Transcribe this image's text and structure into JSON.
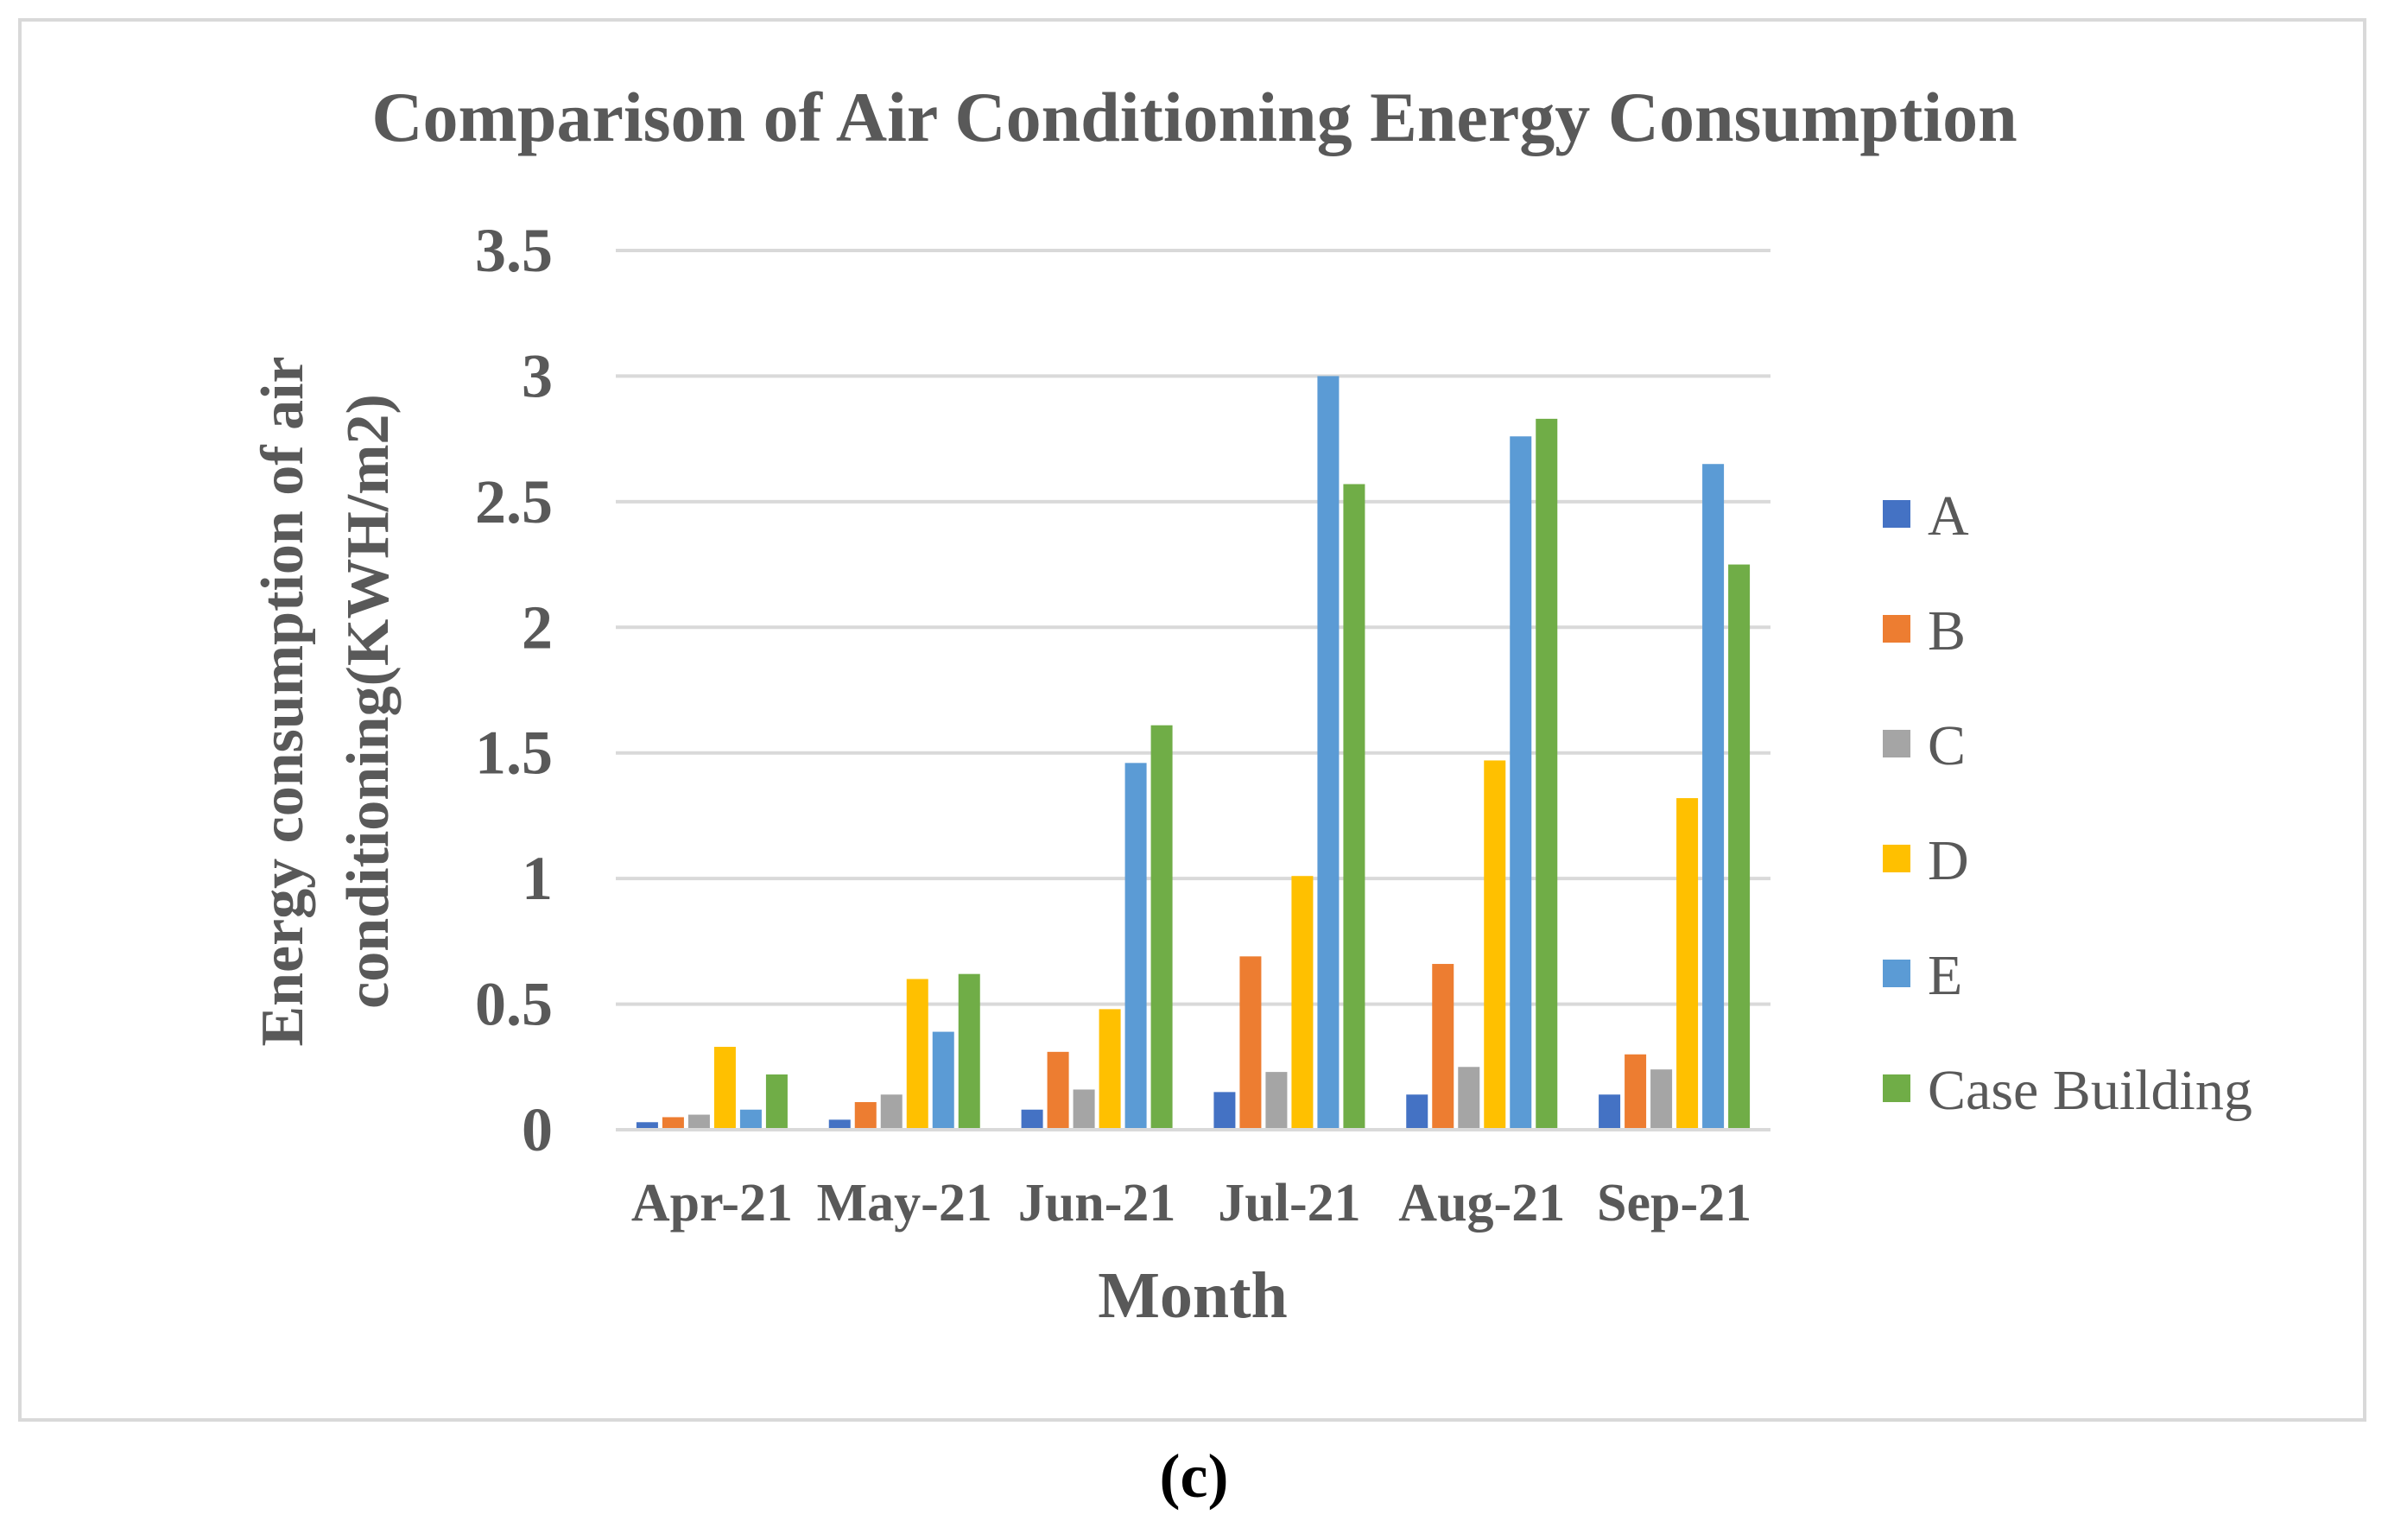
{
  "caption": "(c)",
  "chart_data": {
    "type": "bar",
    "title": "Comparison of Air Conditioning Energy Consumption",
    "xlabel": "Month",
    "ylabel_line1": "Energy consumption of air",
    "ylabel_line2": "conditioning(KWH/m2)",
    "ylim": [
      0,
      3.5
    ],
    "yticks": [
      {
        "value": 0,
        "label": "0"
      },
      {
        "value": 0.5,
        "label": "0.5"
      },
      {
        "value": 1,
        "label": "1"
      },
      {
        "value": 1.5,
        "label": "1.5"
      },
      {
        "value": 2,
        "label": "2"
      },
      {
        "value": 2.5,
        "label": "2.5"
      },
      {
        "value": 3,
        "label": "3"
      },
      {
        "value": 3.5,
        "label": "3.5"
      }
    ],
    "grid": true,
    "legend_position": "right",
    "categories": [
      "Apr-21",
      "May-21",
      "Jun-21",
      "Jul-21",
      "Aug-21",
      "Sep-21"
    ],
    "series": [
      {
        "name": "A",
        "color": "#4472C4",
        "values": [
          0.03,
          0.04,
          0.08,
          0.15,
          0.14,
          0.14
        ]
      },
      {
        "name": "B",
        "color": "#ED7D31",
        "values": [
          0.05,
          0.11,
          0.31,
          0.69,
          0.66,
          0.3
        ]
      },
      {
        "name": "C",
        "color": "#A5A5A5",
        "values": [
          0.06,
          0.14,
          0.16,
          0.23,
          0.25,
          0.24
        ]
      },
      {
        "name": "D",
        "color": "#FFC000",
        "values": [
          0.33,
          0.6,
          0.48,
          1.01,
          1.47,
          1.32
        ]
      },
      {
        "name": "E",
        "color": "#5B9BD5",
        "values": [
          0.08,
          0.39,
          1.46,
          3.0,
          2.76,
          2.65
        ]
      },
      {
        "name": "Case Building",
        "color": "#70AD47",
        "values": [
          0.22,
          0.62,
          1.61,
          2.57,
          2.83,
          2.25
        ]
      }
    ]
  }
}
